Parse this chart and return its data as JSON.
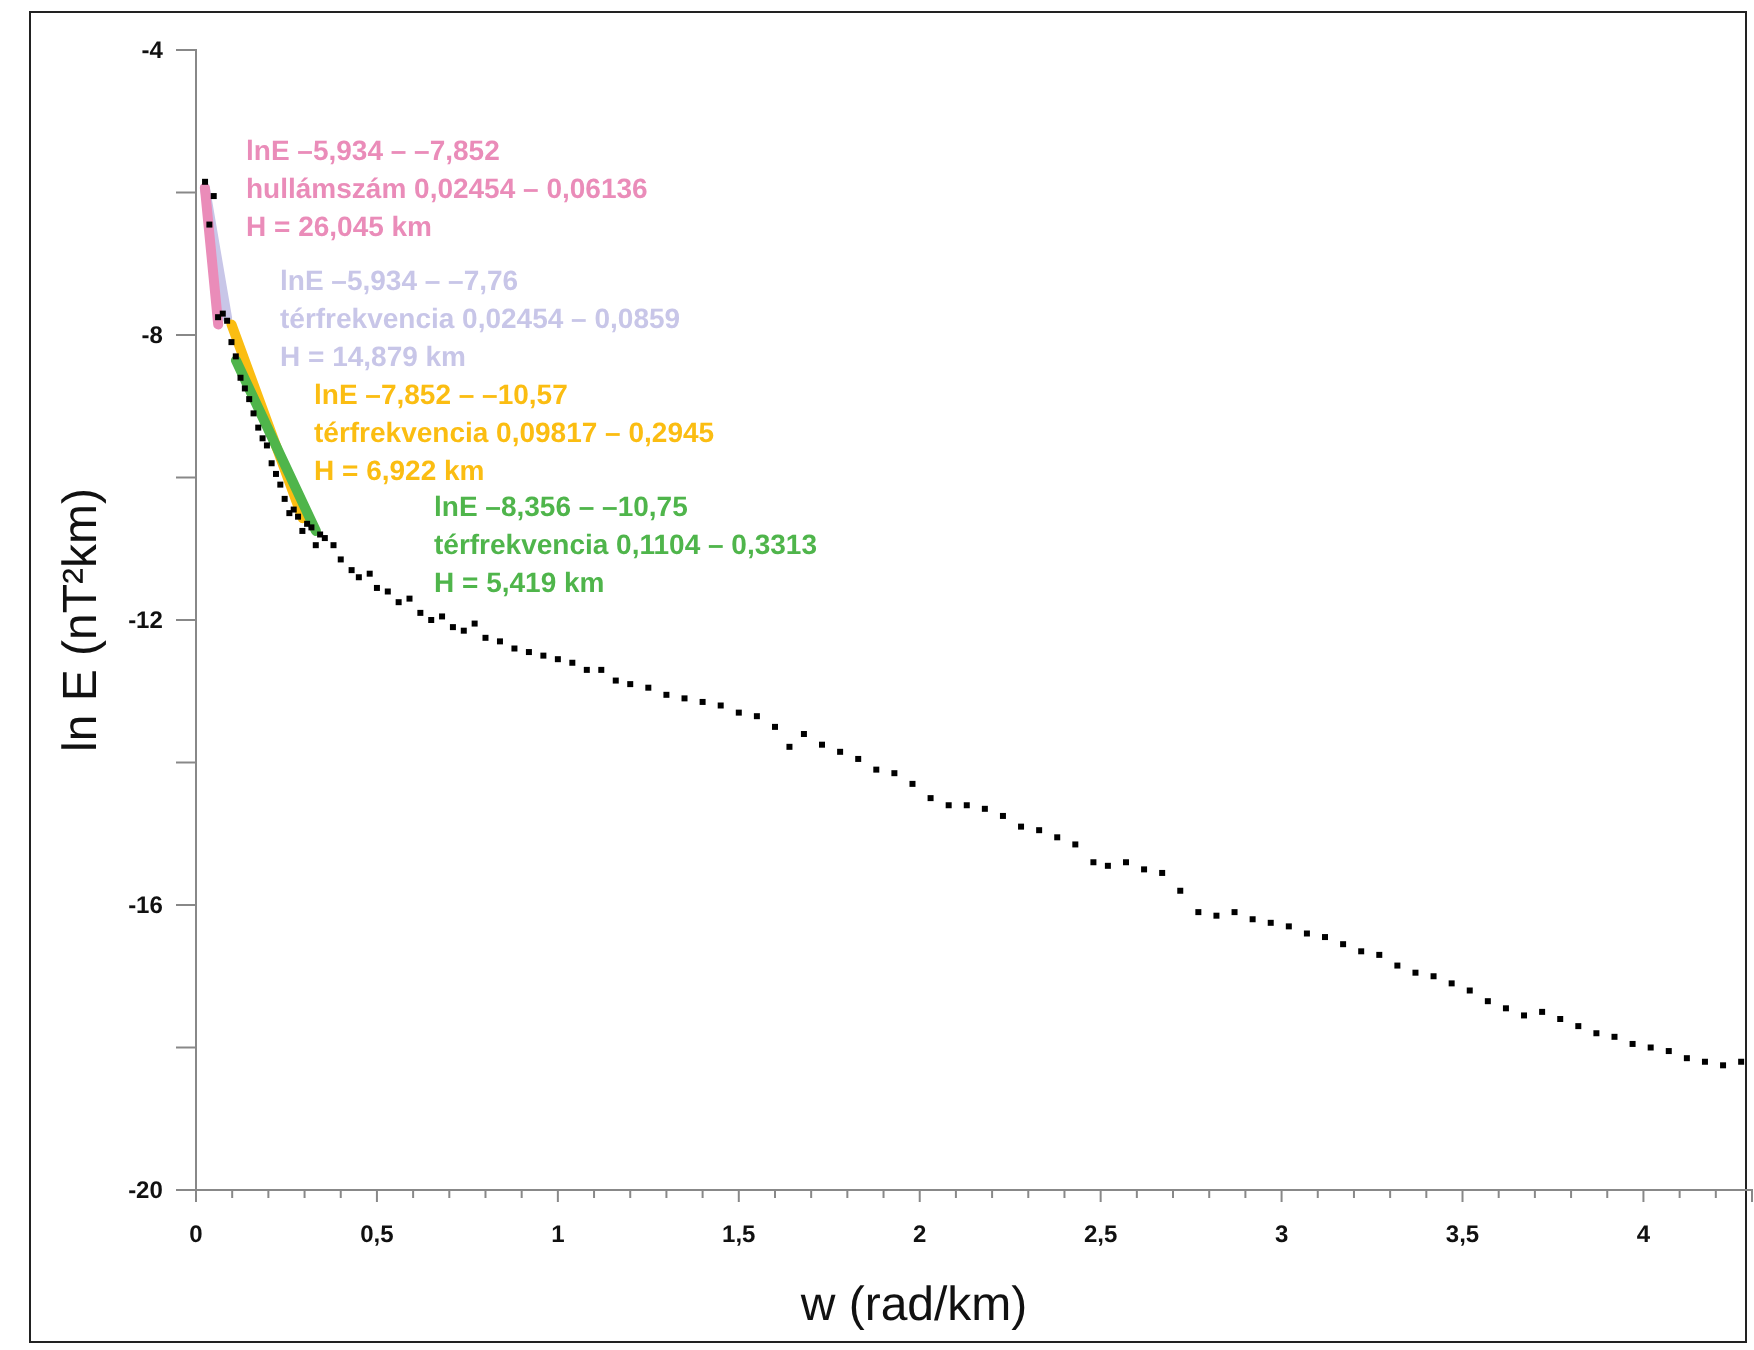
{
  "chart_data": {
    "type": "scatter",
    "xlabel": "w (rad/km)",
    "ylabel": "ln E (nT²km)",
    "xlim": [
      0,
      4.3
    ],
    "ylim": [
      -20,
      -4
    ],
    "xticks": [
      0,
      {
        "value": 0.1,
        "label": null
      },
      {
        "value": 0.2,
        "label": null
      },
      {
        "value": 0.3,
        "label": null
      },
      {
        "value": 0.4,
        "label": null
      },
      {
        "value": 0.5,
        "label": "0,5"
      },
      {
        "value": 0.6,
        "label": null
      },
      {
        "value": 0.7,
        "label": null
      },
      {
        "value": 0.8,
        "label": null
      },
      {
        "value": 0.9,
        "label": null
      },
      1,
      {
        "value": 1.1,
        "label": null
      },
      {
        "value": 1.2,
        "label": null
      },
      {
        "value": 1.3,
        "label": null
      },
      {
        "value": 1.4,
        "label": null
      },
      {
        "value": 1.5,
        "label": "1,5"
      },
      {
        "value": 1.6,
        "label": null
      },
      {
        "value": 1.7,
        "label": null
      },
      {
        "value": 1.8,
        "label": null
      },
      {
        "value": 1.9,
        "label": null
      },
      2,
      {
        "value": 2.1,
        "label": null
      },
      {
        "value": 2.2,
        "label": null
      },
      {
        "value": 2.3,
        "label": null
      },
      {
        "value": 2.4,
        "label": null
      },
      {
        "value": 2.5,
        "label": "2,5"
      },
      {
        "value": 2.6,
        "label": null
      },
      {
        "value": 2.7,
        "label": null
      },
      {
        "value": 2.8,
        "label": null
      },
      {
        "value": 2.9,
        "label": null
      },
      3,
      {
        "value": 3.1,
        "label": null
      },
      {
        "value": 3.2,
        "label": null
      },
      {
        "value": 3.3,
        "label": null
      },
      {
        "value": 3.4,
        "label": null
      },
      {
        "value": 3.5,
        "label": "3,5"
      },
      {
        "value": 3.6,
        "label": null
      },
      {
        "value": 3.7,
        "label": null
      },
      {
        "value": 3.8,
        "label": null
      },
      {
        "value": 3.9,
        "label": null
      },
      4,
      {
        "value": 4.1,
        "label": null
      },
      {
        "value": 4.2,
        "label": null
      }
    ],
    "yticks": [
      -20,
      {
        "value": -18,
        "label": null
      },
      -16,
      {
        "value": -14,
        "label": null
      },
      -12,
      {
        "value": -10,
        "label": null
      },
      -8,
      {
        "value": -6,
        "label": null
      },
      -4
    ],
    "grid": false,
    "series": [
      {
        "marker": "square",
        "color": "#000000",
        "x": [
          0.025,
          0.037,
          0.049,
          0.061,
          0.074,
          0.086,
          0.098,
          0.11,
          0.123,
          0.135,
          0.147,
          0.159,
          0.172,
          0.184,
          0.196,
          0.209,
          0.221,
          0.233,
          0.245,
          0.258,
          0.27,
          0.282,
          0.294,
          0.307,
          0.319,
          0.331,
          0.343,
          0.356,
          0.38,
          0.4,
          0.43,
          0.45,
          0.48,
          0.5,
          0.53,
          0.56,
          0.59,
          0.62,
          0.65,
          0.68,
          0.71,
          0.74,
          0.77,
          0.8,
          0.84,
          0.88,
          0.92,
          0.96,
          1.0,
          1.04,
          1.08,
          1.12,
          1.16,
          1.2,
          1.25,
          1.3,
          1.35,
          1.4,
          1.45,
          1.5,
          1.55,
          1.6,
          1.64,
          1.68,
          1.73,
          1.78,
          1.83,
          1.88,
          1.93,
          1.98,
          2.03,
          2.08,
          2.13,
          2.18,
          2.23,
          2.28,
          2.33,
          2.38,
          2.43,
          2.48,
          2.52,
          2.57,
          2.62,
          2.67,
          2.72,
          2.77,
          2.82,
          2.87,
          2.92,
          2.97,
          3.02,
          3.07,
          3.12,
          3.17,
          3.22,
          3.27,
          3.32,
          3.37,
          3.42,
          3.47,
          3.52,
          3.57,
          3.62,
          3.67,
          3.72,
          3.77,
          3.82,
          3.87,
          3.92,
          3.97,
          4.02,
          4.07,
          4.12,
          4.17,
          4.22,
          4.27
        ],
        "values": [
          -5.85,
          -6.45,
          -6.05,
          -7.75,
          -7.7,
          -7.8,
          -8.1,
          -8.3,
          -8.6,
          -8.75,
          -8.9,
          -9.1,
          -9.3,
          -9.45,
          -9.55,
          -9.8,
          -9.95,
          -10.1,
          -10.3,
          -10.5,
          -10.45,
          -10.55,
          -10.75,
          -10.65,
          -10.7,
          -10.95,
          -10.8,
          -10.85,
          -10.95,
          -11.15,
          -11.3,
          -11.4,
          -11.35,
          -11.55,
          -11.6,
          -11.75,
          -11.7,
          -11.9,
          -12.0,
          -11.95,
          -12.1,
          -12.15,
          -12.05,
          -12.25,
          -12.3,
          -12.4,
          -12.45,
          -12.5,
          -12.55,
          -12.6,
          -12.7,
          -12.7,
          -12.85,
          -12.9,
          -12.95,
          -13.05,
          -13.1,
          -13.15,
          -13.2,
          -13.3,
          -13.35,
          -13.5,
          -13.78,
          -13.6,
          -13.75,
          -13.85,
          -13.95,
          -14.1,
          -14.15,
          -14.3,
          -14.5,
          -14.6,
          -14.6,
          -14.65,
          -14.75,
          -14.9,
          -14.95,
          -15.05,
          -15.15,
          -15.4,
          -15.45,
          -15.4,
          -15.5,
          -15.55,
          -15.8,
          -16.1,
          -16.15,
          -16.1,
          -16.2,
          -16.25,
          -16.3,
          -16.4,
          -16.45,
          -16.55,
          -16.65,
          -16.7,
          -16.85,
          -16.95,
          -17.0,
          -17.1,
          -17.2,
          -17.35,
          -17.45,
          -17.55,
          -17.5,
          -17.6,
          -17.7,
          -17.8,
          -17.85,
          -17.95,
          -18.0,
          -18.05,
          -18.15,
          -18.2,
          -18.25,
          -18.2
        ]
      },
      {
        "type": "line",
        "color": "#c8c6e8",
        "x": [
          0.02454,
          0.0859
        ],
        "values": [
          -5.934,
          -7.76
        ]
      },
      {
        "type": "line",
        "color": "#ea8cb9",
        "x": [
          0.02454,
          0.06136
        ],
        "values": [
          -5.934,
          -7.852
        ]
      },
      {
        "type": "line",
        "color": "#fbbd12",
        "x": [
          0.09817,
          0.2945
        ],
        "values": [
          -7.852,
          -10.57
        ]
      },
      {
        "type": "line",
        "color": "#4fb54b",
        "x": [
          0.1104,
          0.3313
        ],
        "values": [
          -8.356,
          -10.75
        ]
      }
    ],
    "annotations": [
      "lnE –5,934 – –7,852",
      "hullámszám 0,02454 – 0,06136",
      "H = 26,045 km",
      "lnE –5,934 – –7,76",
      "térfrekvencia 0,02454 – 0,0859",
      "H = 14,879 km",
      "lnE –7,852 – –10,57",
      "térfrekvencia 0,09817 – 0,2945",
      "H = 6,922 km",
      "lnE –8,356 – –10,75",
      "térfrekvencia 0,1104 – 0,3313",
      "H = 5,419 km"
    ]
  }
}
